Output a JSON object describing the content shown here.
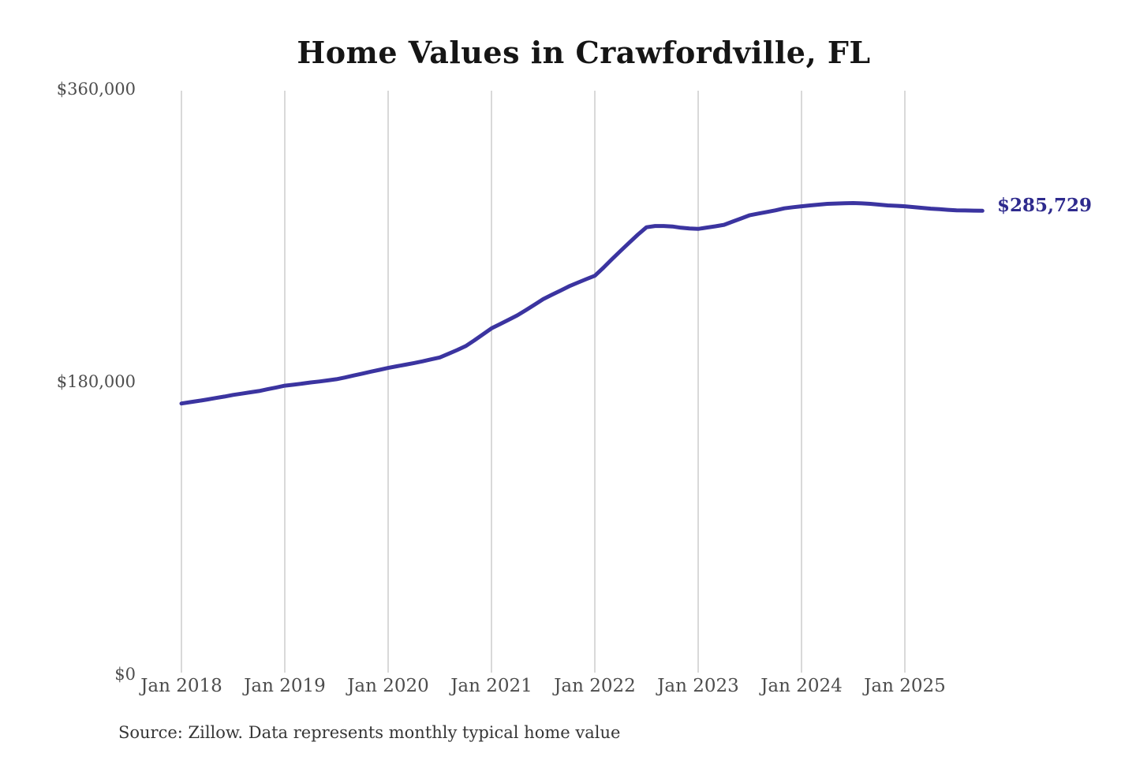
{
  "page": {
    "source_note": "Source: Zillow. Data represents monthly typical home value"
  },
  "chart_data": {
    "type": "line",
    "title": "Home Values in Crawfordville, FL",
    "series_name": "Monthly typical home value",
    "xlabel": "",
    "ylabel": "",
    "ylim": [
      0,
      360000
    ],
    "grid": "vertical-only",
    "legend": "none",
    "y_ticks": [
      "$0",
      "$180,000",
      "$360,000"
    ],
    "x_ticks": [
      "Jan 2018",
      "Jan 2019",
      "Jan 2020",
      "Jan 2021",
      "Jan 2022",
      "Jan 2023",
      "Jan 2024",
      "Jan 2025"
    ],
    "end_label": "$285,729",
    "final_value": 285729,
    "line_color": "#3b34a0",
    "label_color": "#2e2a8d",
    "months": [
      "2018-01",
      "2018-02",
      "2018-03",
      "2018-04",
      "2018-05",
      "2018-06",
      "2018-07",
      "2018-08",
      "2018-09",
      "2018-10",
      "2018-11",
      "2018-12",
      "2019-01",
      "2019-02",
      "2019-03",
      "2019-04",
      "2019-05",
      "2019-06",
      "2019-07",
      "2019-08",
      "2019-09",
      "2019-10",
      "2019-11",
      "2019-12",
      "2020-01",
      "2020-02",
      "2020-03",
      "2020-04",
      "2020-05",
      "2020-06",
      "2020-07",
      "2020-08",
      "2020-09",
      "2020-10",
      "2020-11",
      "2020-12",
      "2021-01",
      "2021-02",
      "2021-03",
      "2021-04",
      "2021-05",
      "2021-06",
      "2021-07",
      "2021-08",
      "2021-09",
      "2021-10",
      "2021-11",
      "2021-12",
      "2022-01",
      "2022-02",
      "2022-03",
      "2022-04",
      "2022-05",
      "2022-06",
      "2022-07",
      "2022-08",
      "2022-09",
      "2022-10",
      "2022-11",
      "2022-12",
      "2023-01",
      "2023-02",
      "2023-03",
      "2023-04",
      "2023-05",
      "2023-06",
      "2023-07",
      "2023-08",
      "2023-09",
      "2023-10",
      "2023-11",
      "2023-12",
      "2024-01",
      "2024-02",
      "2024-03",
      "2024-04",
      "2024-05",
      "2024-06",
      "2024-07",
      "2024-08",
      "2024-09",
      "2024-10",
      "2024-11",
      "2024-12",
      "2025-01",
      "2025-02",
      "2025-03",
      "2025-04",
      "2025-05",
      "2025-06",
      "2025-07",
      "2025-08",
      "2025-09",
      "2025-10"
    ],
    "values": [
      166500,
      167300,
      168100,
      169000,
      169900,
      170800,
      171800,
      172600,
      173400,
      174200,
      175300,
      176400,
      177500,
      178100,
      178800,
      179500,
      180100,
      180800,
      181500,
      182600,
      183800,
      185000,
      186200,
      187300,
      188500,
      189500,
      190500,
      191500,
      192600,
      193800,
      195000,
      197200,
      199500,
      202000,
      205500,
      209200,
      213000,
      215600,
      218300,
      221000,
      224300,
      227600,
      231000,
      233700,
      236300,
      239000,
      241200,
      243400,
      245500,
      250500,
      255800,
      261000,
      266000,
      271000,
      275500,
      276300,
      276300,
      276000,
      275200,
      274800,
      274500,
      275300,
      276100,
      277000,
      279000,
      281000,
      283000,
      284000,
      285000,
      286000,
      287200,
      287900,
      288500,
      289000,
      289500,
      290000,
      290200,
      290400,
      290500,
      290300,
      290000,
      289500,
      289000,
      288800,
      288500,
      288000,
      287500,
      287000,
      286700,
      286300,
      286000,
      285900,
      285800,
      285729
    ]
  }
}
